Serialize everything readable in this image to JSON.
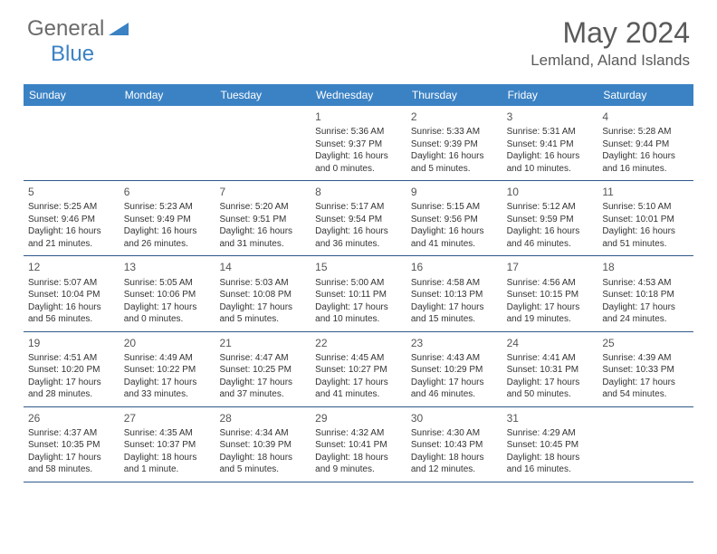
{
  "logo": {
    "text1": "General",
    "text2": "Blue"
  },
  "title": "May 2024",
  "location": "Lemland, Aland Islands",
  "colors": {
    "header_bg": "#3b82c4",
    "header_text": "#ffffff",
    "border": "#2f5a8a",
    "title_text": "#5a5a5a",
    "logo_gray": "#6b6b6b",
    "logo_blue": "#3b82c4"
  },
  "day_names": [
    "Sunday",
    "Monday",
    "Tuesday",
    "Wednesday",
    "Thursday",
    "Friday",
    "Saturday"
  ],
  "weeks": [
    [
      {
        "blank": true
      },
      {
        "blank": true
      },
      {
        "blank": true
      },
      {
        "n": "1",
        "sr": "5:36 AM",
        "ss": "9:37 PM",
        "dl": "16 hours and 0 minutes."
      },
      {
        "n": "2",
        "sr": "5:33 AM",
        "ss": "9:39 PM",
        "dl": "16 hours and 5 minutes."
      },
      {
        "n": "3",
        "sr": "5:31 AM",
        "ss": "9:41 PM",
        "dl": "16 hours and 10 minutes."
      },
      {
        "n": "4",
        "sr": "5:28 AM",
        "ss": "9:44 PM",
        "dl": "16 hours and 16 minutes."
      }
    ],
    [
      {
        "n": "5",
        "sr": "5:25 AM",
        "ss": "9:46 PM",
        "dl": "16 hours and 21 minutes."
      },
      {
        "n": "6",
        "sr": "5:23 AM",
        "ss": "9:49 PM",
        "dl": "16 hours and 26 minutes."
      },
      {
        "n": "7",
        "sr": "5:20 AM",
        "ss": "9:51 PM",
        "dl": "16 hours and 31 minutes."
      },
      {
        "n": "8",
        "sr": "5:17 AM",
        "ss": "9:54 PM",
        "dl": "16 hours and 36 minutes."
      },
      {
        "n": "9",
        "sr": "5:15 AM",
        "ss": "9:56 PM",
        "dl": "16 hours and 41 minutes."
      },
      {
        "n": "10",
        "sr": "5:12 AM",
        "ss": "9:59 PM",
        "dl": "16 hours and 46 minutes."
      },
      {
        "n": "11",
        "sr": "5:10 AM",
        "ss": "10:01 PM",
        "dl": "16 hours and 51 minutes."
      }
    ],
    [
      {
        "n": "12",
        "sr": "5:07 AM",
        "ss": "10:04 PM",
        "dl": "16 hours and 56 minutes."
      },
      {
        "n": "13",
        "sr": "5:05 AM",
        "ss": "10:06 PM",
        "dl": "17 hours and 0 minutes."
      },
      {
        "n": "14",
        "sr": "5:03 AM",
        "ss": "10:08 PM",
        "dl": "17 hours and 5 minutes."
      },
      {
        "n": "15",
        "sr": "5:00 AM",
        "ss": "10:11 PM",
        "dl": "17 hours and 10 minutes."
      },
      {
        "n": "16",
        "sr": "4:58 AM",
        "ss": "10:13 PM",
        "dl": "17 hours and 15 minutes."
      },
      {
        "n": "17",
        "sr": "4:56 AM",
        "ss": "10:15 PM",
        "dl": "17 hours and 19 minutes."
      },
      {
        "n": "18",
        "sr": "4:53 AM",
        "ss": "10:18 PM",
        "dl": "17 hours and 24 minutes."
      }
    ],
    [
      {
        "n": "19",
        "sr": "4:51 AM",
        "ss": "10:20 PM",
        "dl": "17 hours and 28 minutes."
      },
      {
        "n": "20",
        "sr": "4:49 AM",
        "ss": "10:22 PM",
        "dl": "17 hours and 33 minutes."
      },
      {
        "n": "21",
        "sr": "4:47 AM",
        "ss": "10:25 PM",
        "dl": "17 hours and 37 minutes."
      },
      {
        "n": "22",
        "sr": "4:45 AM",
        "ss": "10:27 PM",
        "dl": "17 hours and 41 minutes."
      },
      {
        "n": "23",
        "sr": "4:43 AM",
        "ss": "10:29 PM",
        "dl": "17 hours and 46 minutes."
      },
      {
        "n": "24",
        "sr": "4:41 AM",
        "ss": "10:31 PM",
        "dl": "17 hours and 50 minutes."
      },
      {
        "n": "25",
        "sr": "4:39 AM",
        "ss": "10:33 PM",
        "dl": "17 hours and 54 minutes."
      }
    ],
    [
      {
        "n": "26",
        "sr": "4:37 AM",
        "ss": "10:35 PM",
        "dl": "17 hours and 58 minutes."
      },
      {
        "n": "27",
        "sr": "4:35 AM",
        "ss": "10:37 PM",
        "dl": "18 hours and 1 minute."
      },
      {
        "n": "28",
        "sr": "4:34 AM",
        "ss": "10:39 PM",
        "dl": "18 hours and 5 minutes."
      },
      {
        "n": "29",
        "sr": "4:32 AM",
        "ss": "10:41 PM",
        "dl": "18 hours and 9 minutes."
      },
      {
        "n": "30",
        "sr": "4:30 AM",
        "ss": "10:43 PM",
        "dl": "18 hours and 12 minutes."
      },
      {
        "n": "31",
        "sr": "4:29 AM",
        "ss": "10:45 PM",
        "dl": "18 hours and 16 minutes."
      },
      {
        "blank": true
      }
    ]
  ],
  "labels": {
    "sunrise": "Sunrise:",
    "sunset": "Sunset:",
    "daylight": "Daylight:"
  }
}
